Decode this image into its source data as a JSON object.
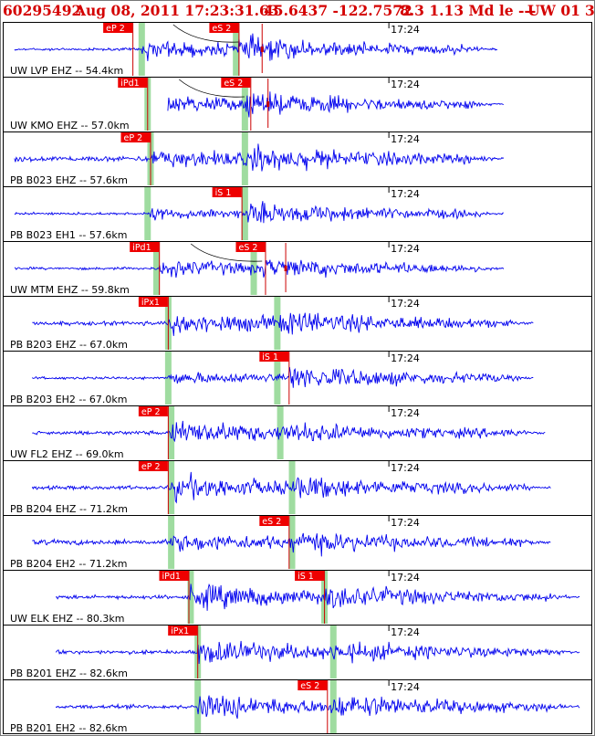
{
  "header": {
    "event_id": "60295492",
    "datetime": "Aug 08, 2011 17:23:31.63",
    "location": "45.6437 -122.7572",
    "depth_mag": "8.3 1.13 Md le ---",
    "network": "UW 01",
    "extra": "3"
  },
  "colors": {
    "header_text": "#d40000",
    "trace": "#0000ee",
    "pick_box": "#ee0000",
    "pick_line": "#cc0000",
    "predicted_band": "#9fdca0",
    "frame": "#000000",
    "border": "#777777"
  },
  "chart_data": {
    "type": "seismogram",
    "time_label": "17:24",
    "traces": [
      {
        "label": "UW LVP EHZ -- 54.4km",
        "picks": [
          {
            "text": "eP 2",
            "t": 0.22
          },
          {
            "text": "eS 2",
            "t": 0.4
          }
        ],
        "pred": [
          0.235,
          0.395
        ],
        "start": 0.02,
        "end": 0.84,
        "p_onset": 0.235,
        "s_onset": 0.4,
        "quiet": 2,
        "pamp": 10,
        "samp": 16,
        "curve": true,
        "tick": 0.44
      },
      {
        "label": "UW KMO EHZ -- 57.0km",
        "picks": [
          {
            "text": "iPd1",
            "t": 0.245
          },
          {
            "text": "eS 2",
            "t": 0.42
          }
        ],
        "pred": [
          0.245,
          0.41
        ],
        "start": 0.28,
        "end": 0.85,
        "p_onset": 0.245,
        "s_onset": 0.41,
        "quiet": 3,
        "pamp": 9,
        "samp": 16,
        "curve": true,
        "tick": 0.45
      },
      {
        "label": "PB B023 EHZ -- 57.6km",
        "picks": [
          {
            "text": "eP 2",
            "t": 0.25
          }
        ],
        "pred": [
          0.25,
          0.41
        ],
        "start": 0.02,
        "end": 0.85,
        "p_onset": 0.25,
        "s_onset": 0.42,
        "quiet": 4,
        "pamp": 8,
        "samp": 18,
        "curve": false,
        "tick": null
      },
      {
        "label": "PB B023 EH1 -- 57.6km",
        "picks": [
          {
            "text": "iS 1",
            "t": 0.405
          }
        ],
        "pred": [
          0.245,
          0.41
        ],
        "start": 0.02,
        "end": 0.85,
        "p_onset": 0.25,
        "s_onset": 0.415,
        "quiet": 2,
        "pamp": 4,
        "samp": 14,
        "curve": false,
        "tick": null
      },
      {
        "label": "UW MTM EHZ -- 59.8km",
        "picks": [
          {
            "text": "iPd1",
            "t": 0.265
          },
          {
            "text": "eS 2",
            "t": 0.445
          }
        ],
        "pred": [
          0.26,
          0.425
        ],
        "start": 0.02,
        "end": 0.85,
        "p_onset": 0.265,
        "s_onset": 0.44,
        "quiet": 2,
        "pamp": 9,
        "samp": 13,
        "curve": true,
        "tick": 0.48
      },
      {
        "label": "PB B203 EHZ -- 67.0km",
        "picks": [
          {
            "text": "iPx1",
            "t": 0.28
          }
        ],
        "pred": [
          0.28,
          0.465
        ],
        "start": 0.05,
        "end": 0.9,
        "p_onset": 0.28,
        "s_onset": 0.47,
        "quiet": 3,
        "pamp": 13,
        "samp": 16,
        "curve": false,
        "tick": null
      },
      {
        "label": "PB B203 EH2 -- 67.0km",
        "picks": [
          {
            "text": "iS 1",
            "t": 0.485
          }
        ],
        "pred": [
          0.28,
          0.465
        ],
        "start": 0.05,
        "end": 0.9,
        "p_onset": 0.28,
        "s_onset": 0.485,
        "quiet": 2,
        "pamp": 5,
        "samp": 16,
        "curve": false,
        "tick": null
      },
      {
        "label": "UW FL2 EHZ -- 69.0km",
        "picks": [
          {
            "text": "eP 2",
            "t": 0.28
          }
        ],
        "pred": [
          0.285,
          0.47
        ],
        "start": 0.05,
        "end": 0.92,
        "p_onset": 0.285,
        "s_onset": 0.47,
        "quiet": 3,
        "pamp": 15,
        "samp": 13,
        "curve": false,
        "tick": null
      },
      {
        "label": "PB B204 EHZ -- 71.2km",
        "picks": [
          {
            "text": "eP 2",
            "t": 0.28
          }
        ],
        "pred": [
          0.285,
          0.49
        ],
        "start": 0.05,
        "end": 0.93,
        "p_onset": 0.285,
        "s_onset": 0.49,
        "quiet": 3,
        "pamp": 15,
        "samp": 15,
        "curve": false,
        "tick": null
      },
      {
        "label": "PB B204 EH2 -- 71.2km",
        "picks": [
          {
            "text": "eS 2",
            "t": 0.485
          }
        ],
        "pred": [
          0.285,
          0.49
        ],
        "start": 0.05,
        "end": 0.93,
        "p_onset": 0.285,
        "s_onset": 0.49,
        "quiet": 4,
        "pamp": 8,
        "samp": 15,
        "curve": false,
        "tick": null
      },
      {
        "label": "UW ELK EHZ -- 80.3km",
        "picks": [
          {
            "text": "iPd1",
            "t": 0.315
          },
          {
            "text": "iS 1",
            "t": 0.545
          }
        ],
        "pred": [
          0.318,
          0.545
        ],
        "start": 0.09,
        "end": 0.98,
        "p_onset": 0.318,
        "s_onset": 0.545,
        "quiet": 3,
        "pamp": 15,
        "samp": 16,
        "curve": false,
        "tick": null
      },
      {
        "label": "PB B201 EHZ -- 82.6km",
        "picks": [
          {
            "text": "iPx1",
            "t": 0.33
          }
        ],
        "pred": [
          0.33,
          0.56
        ],
        "start": 0.09,
        "end": 0.98,
        "p_onset": 0.33,
        "s_onset": 0.56,
        "quiet": 3,
        "pamp": 14,
        "samp": 13,
        "curve": false,
        "tick": null
      },
      {
        "label": "PB B201 EH2 -- 82.6km",
        "picks": [
          {
            "text": "eS 2",
            "t": 0.55
          }
        ],
        "pred": [
          0.33,
          0.56
        ],
        "start": 0.09,
        "end": 0.98,
        "p_onset": 0.33,
        "s_onset": 0.56,
        "quiet": 3,
        "pamp": 15,
        "samp": 16,
        "curve": false,
        "tick": null
      }
    ]
  }
}
